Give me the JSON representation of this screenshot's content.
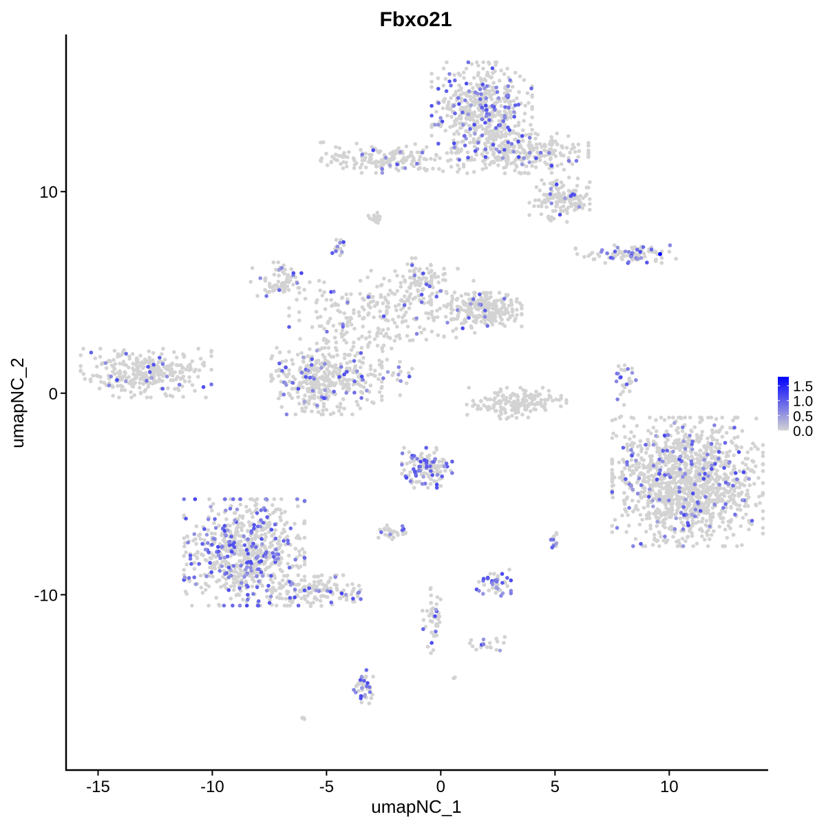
{
  "chart_data": {
    "type": "scatter",
    "title": "Fbxo21",
    "xlabel": "umapNC_1",
    "ylabel": "umapNC_2",
    "xlim": [
      -16.4,
      14.3
    ],
    "ylim": [
      -18.7,
      17.8
    ],
    "xticks": [
      -15,
      -10,
      -5,
      0,
      5,
      10
    ],
    "yticks": [
      -10,
      0,
      10
    ],
    "xtick_labels": [
      "-15",
      "-10",
      "-5",
      "0",
      "5",
      "10"
    ],
    "ytick_labels": [
      "-10",
      "0",
      "10"
    ],
    "grid": false,
    "color_scale": {
      "low": "#D3D3D3",
      "high": "#0000FF",
      "range": [
        0,
        1.8
      ],
      "ticks": [
        0,
        0.5,
        1.0,
        1.5
      ],
      "tick_labels": [
        "0.0",
        "0.5",
        "1.0",
        "1.5"
      ],
      "legend_placement": "right"
    },
    "clusters": [
      {
        "cx": -12.9,
        "cy": 1.0,
        "sx": 1.3,
        "sy": 0.55,
        "n": 320,
        "expr_frac": 0.06
      },
      {
        "cx": 1.8,
        "cy": 14.0,
        "sx": 1.0,
        "sy": 1.1,
        "n": 520,
        "expr_frac": 0.14
      },
      {
        "cx": 3.6,
        "cy": 11.9,
        "sx": 1.3,
        "sy": 0.45,
        "n": 260,
        "expr_frac": 0.12
      },
      {
        "cx": 5.2,
        "cy": 9.6,
        "sx": 0.6,
        "sy": 0.5,
        "n": 150,
        "expr_frac": 0.1
      },
      {
        "cx": -2.4,
        "cy": 11.7,
        "sx": 1.3,
        "sy": 0.35,
        "n": 170,
        "expr_frac": 0.05
      },
      {
        "cx": -2.8,
        "cy": 8.7,
        "sx": 0.2,
        "sy": 0.15,
        "n": 15,
        "expr_frac": 0.0
      },
      {
        "cx": -4.5,
        "cy": 7.4,
        "sx": 0.15,
        "sy": 0.3,
        "n": 18,
        "expr_frac": 0.5
      },
      {
        "cx": -7.0,
        "cy": 5.5,
        "sx": 0.6,
        "sy": 0.45,
        "n": 80,
        "expr_frac": 0.1
      },
      {
        "cx": -5.0,
        "cy": 0.6,
        "sx": 1.1,
        "sy": 0.75,
        "n": 380,
        "expr_frac": 0.08
      },
      {
        "cx": -4.0,
        "cy": 3.6,
        "sx": 1.2,
        "sy": 0.9,
        "n": 140,
        "expr_frac": 0.08
      },
      {
        "cx": -1.0,
        "cy": 4.2,
        "sx": 1.4,
        "sy": 0.9,
        "n": 170,
        "expr_frac": 0.05
      },
      {
        "cx": -0.9,
        "cy": 5.6,
        "sx": 0.5,
        "sy": 0.5,
        "n": 70,
        "expr_frac": 0.1
      },
      {
        "cx": 2.0,
        "cy": 4.1,
        "sx": 0.7,
        "sy": 0.4,
        "n": 210,
        "expr_frac": 0.02
      },
      {
        "cx": -2.2,
        "cy": 1.0,
        "sx": 0.5,
        "sy": 0.5,
        "n": 20,
        "expr_frac": 0.4
      },
      {
        "cx": 3.3,
        "cy": -0.5,
        "sx": 1.0,
        "sy": 0.35,
        "n": 170,
        "expr_frac": 0.0
      },
      {
        "cx": 8.1,
        "cy": 6.9,
        "sx": 1.0,
        "sy": 0.2,
        "n": 90,
        "expr_frac": 0.25
      },
      {
        "cx": 8.1,
        "cy": 0.3,
        "sx": 0.2,
        "sy": 0.7,
        "n": 30,
        "expr_frac": 0.25
      },
      {
        "cx": 10.8,
        "cy": -4.4,
        "sx": 1.5,
        "sy": 1.45,
        "n": 1300,
        "expr_frac": 0.08
      },
      {
        "cx": -0.6,
        "cy": -3.7,
        "sx": 0.5,
        "sy": 0.45,
        "n": 140,
        "expr_frac": 0.25
      },
      {
        "cx": -2.2,
        "cy": -6.9,
        "sx": 0.3,
        "sy": 0.2,
        "n": 30,
        "expr_frac": 0.15
      },
      {
        "cx": -8.6,
        "cy": -7.9,
        "sx": 1.2,
        "sy": 1.2,
        "n": 720,
        "expr_frac": 0.22
      },
      {
        "cx": -5.4,
        "cy": -9.8,
        "sx": 1.0,
        "sy": 0.35,
        "n": 140,
        "expr_frac": 0.15
      },
      {
        "cx": 2.3,
        "cy": -9.4,
        "sx": 0.35,
        "sy": 0.3,
        "n": 45,
        "expr_frac": 0.45
      },
      {
        "cx": 5.0,
        "cy": -7.3,
        "sx": 0.1,
        "sy": 0.3,
        "n": 14,
        "expr_frac": 0.4
      },
      {
        "cx": -3.4,
        "cy": -14.6,
        "sx": 0.2,
        "sy": 0.4,
        "n": 40,
        "expr_frac": 0.4
      },
      {
        "cx": -0.4,
        "cy": -11.2,
        "sx": 0.2,
        "sy": 0.8,
        "n": 45,
        "expr_frac": 0.15
      },
      {
        "cx": 2.0,
        "cy": -12.5,
        "sx": 0.4,
        "sy": 0.2,
        "n": 20,
        "expr_frac": 0.25
      },
      {
        "cx": -6.0,
        "cy": -16.1,
        "sx": 0.06,
        "sy": 0.06,
        "n": 4,
        "expr_frac": 0.0
      },
      {
        "cx": 0.6,
        "cy": -14.1,
        "sx": 0.05,
        "sy": 0.05,
        "n": 3,
        "expr_frac": 0.3
      }
    ],
    "max_point": {
      "x": 9.6,
      "y": 6.9,
      "value": 1.75
    }
  }
}
